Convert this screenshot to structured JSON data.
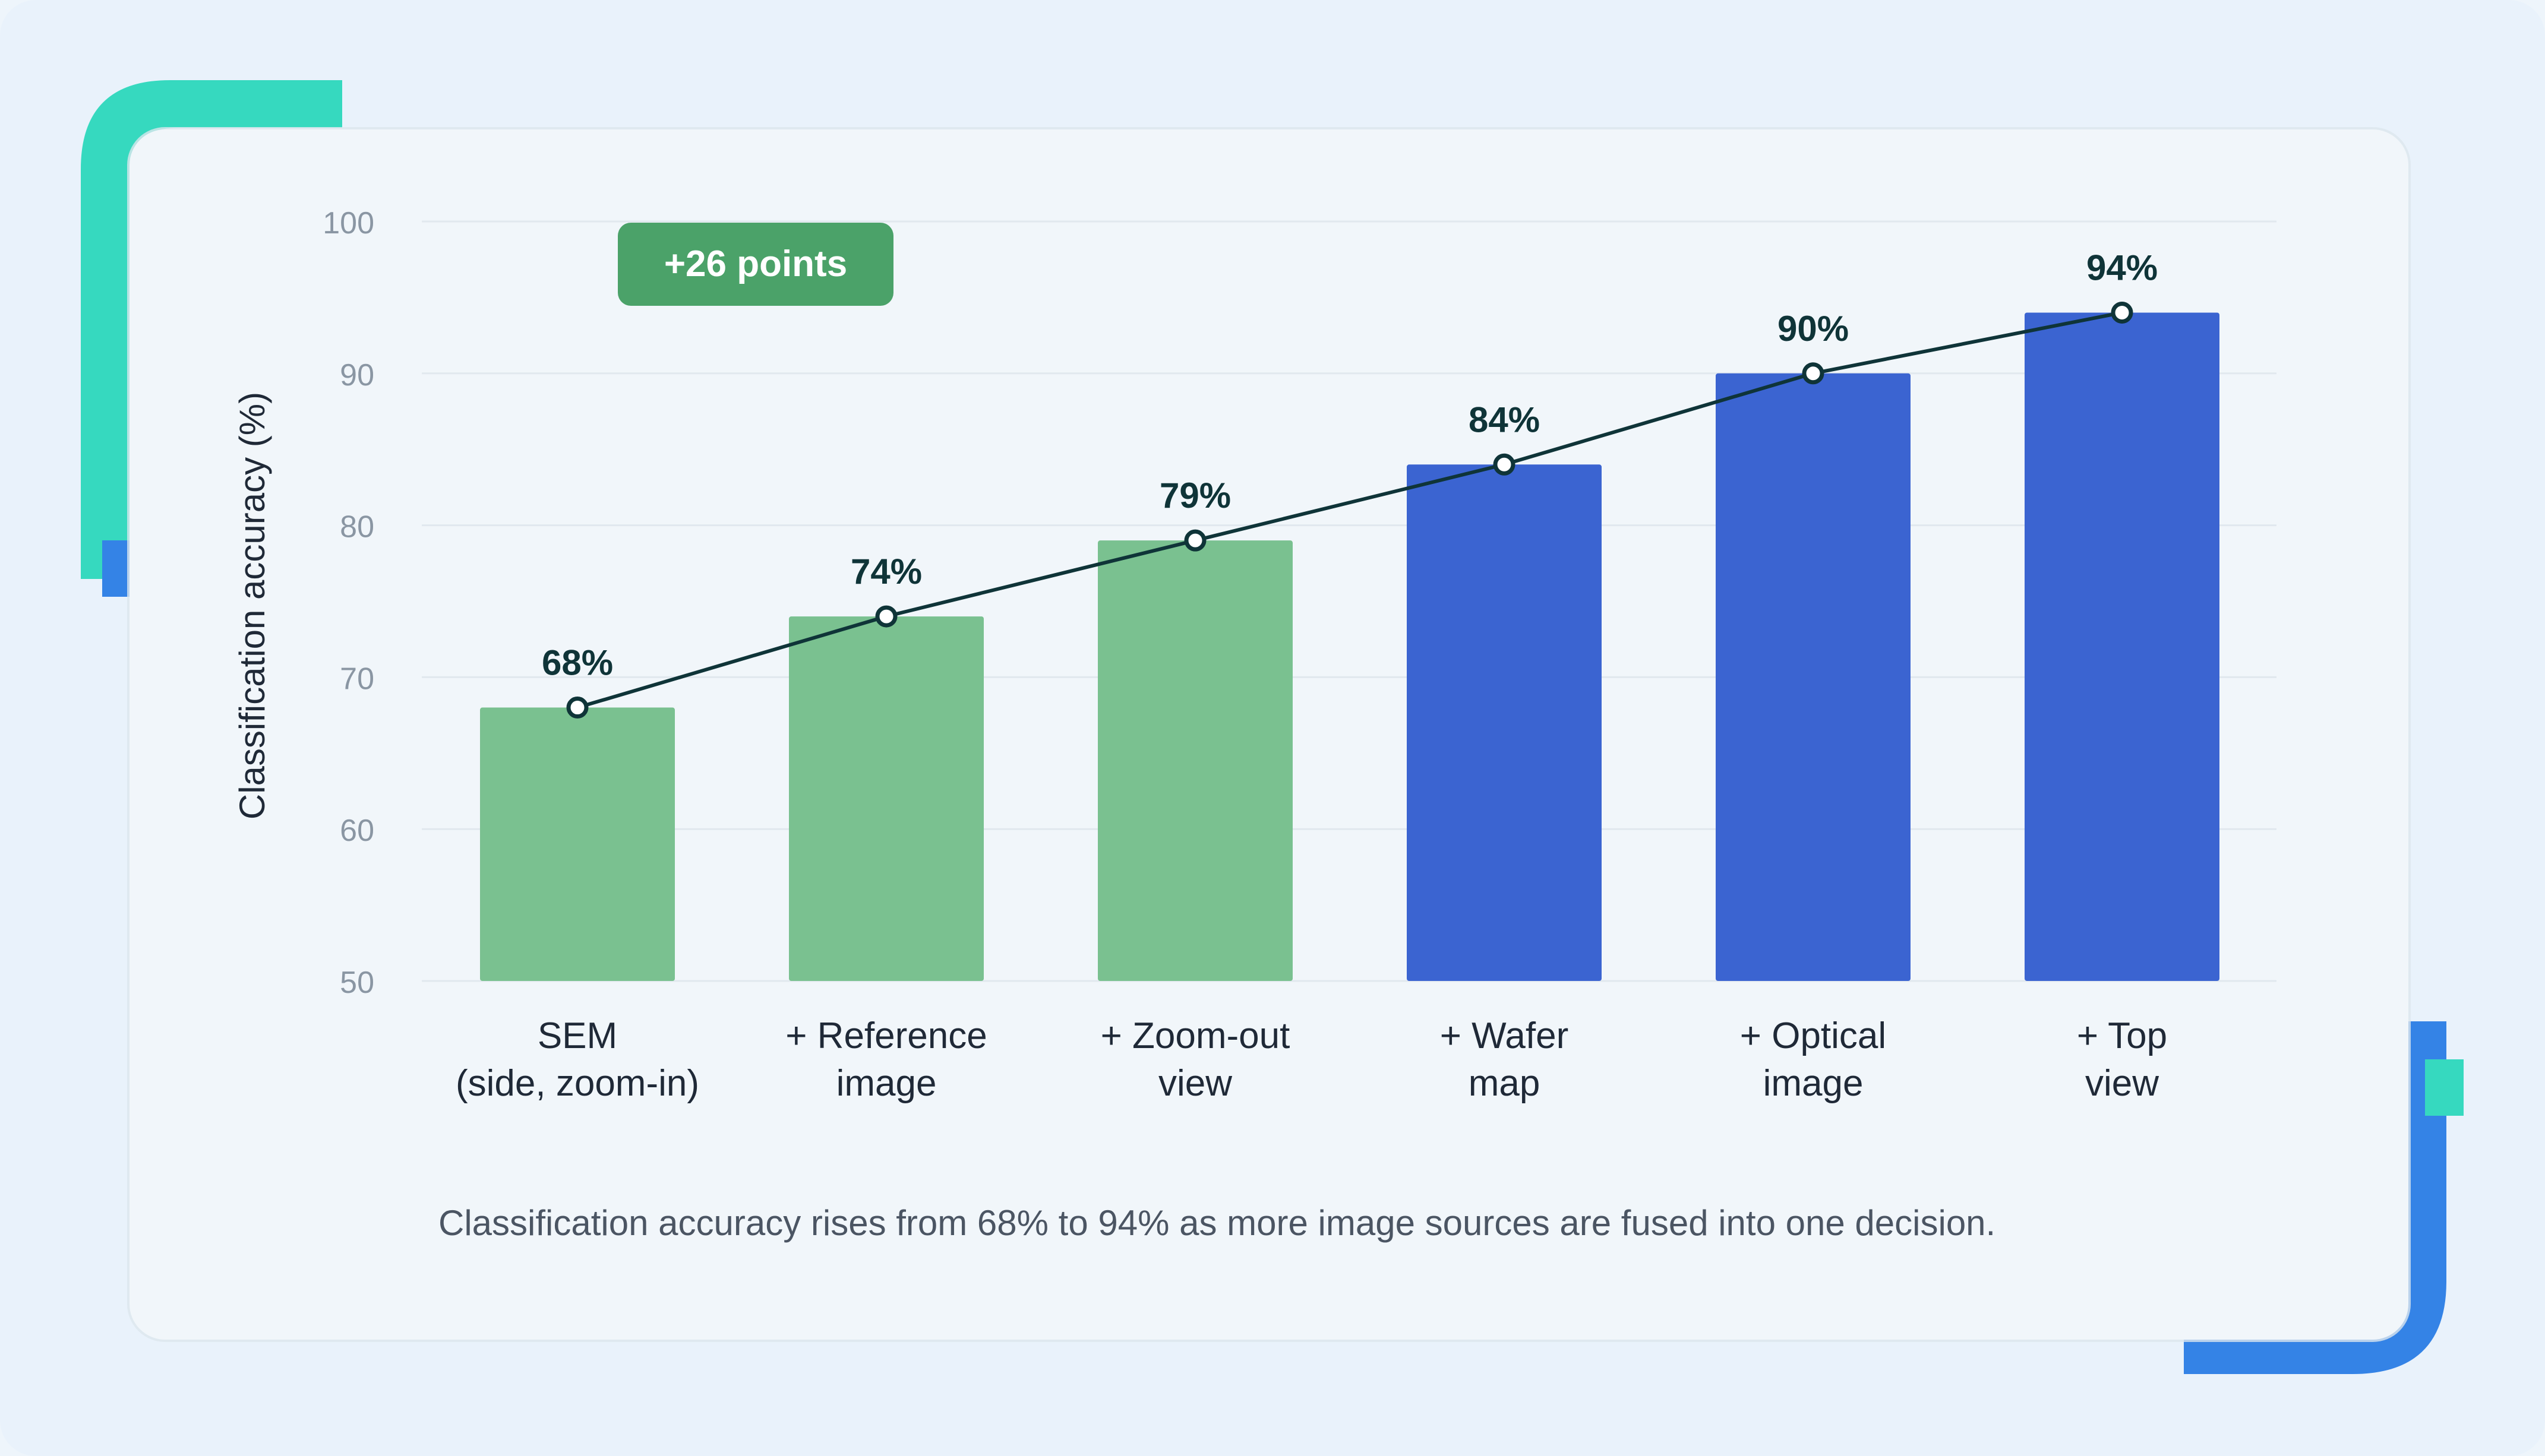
{
  "colors": {
    "green_bar": "#7ac190",
    "blue_bar": "#3b64d1",
    "line": "#0f3438",
    "badge": "#4ba269",
    "accent_teal": "#36d9bf",
    "accent_blue": "#3483e6"
  },
  "caption": "Classification accuracy rises from 68% to 94% as more image sources are fused into one decision.",
  "badge": {
    "label": "+26 points"
  },
  "chart_data": {
    "type": "bar",
    "ylabel": "Classification accuracy (%)",
    "ylim": [
      50,
      100
    ],
    "yticks": [
      50,
      60,
      70,
      80,
      90,
      100
    ],
    "grid": true,
    "categories": [
      [
        "SEM",
        "(side, zoom-in)"
      ],
      [
        "+ Reference",
        "image"
      ],
      [
        "+ Zoom-out",
        "view"
      ],
      [
        "+ Wafer",
        "map"
      ],
      [
        "+ Optical",
        "image"
      ],
      [
        "+ Top",
        "view"
      ]
    ],
    "values": [
      68,
      74,
      79,
      84,
      90,
      94
    ],
    "labels": [
      "68%",
      "74%",
      "79%",
      "84%",
      "90%",
      "94%"
    ],
    "bar_colors": [
      "#7ac190",
      "#7ac190",
      "#7ac190",
      "#3b64d1",
      "#3b64d1",
      "#3b64d1"
    ],
    "overlay_line": {
      "values": [
        68,
        74,
        79,
        84,
        90,
        94
      ],
      "markers": true
    }
  }
}
